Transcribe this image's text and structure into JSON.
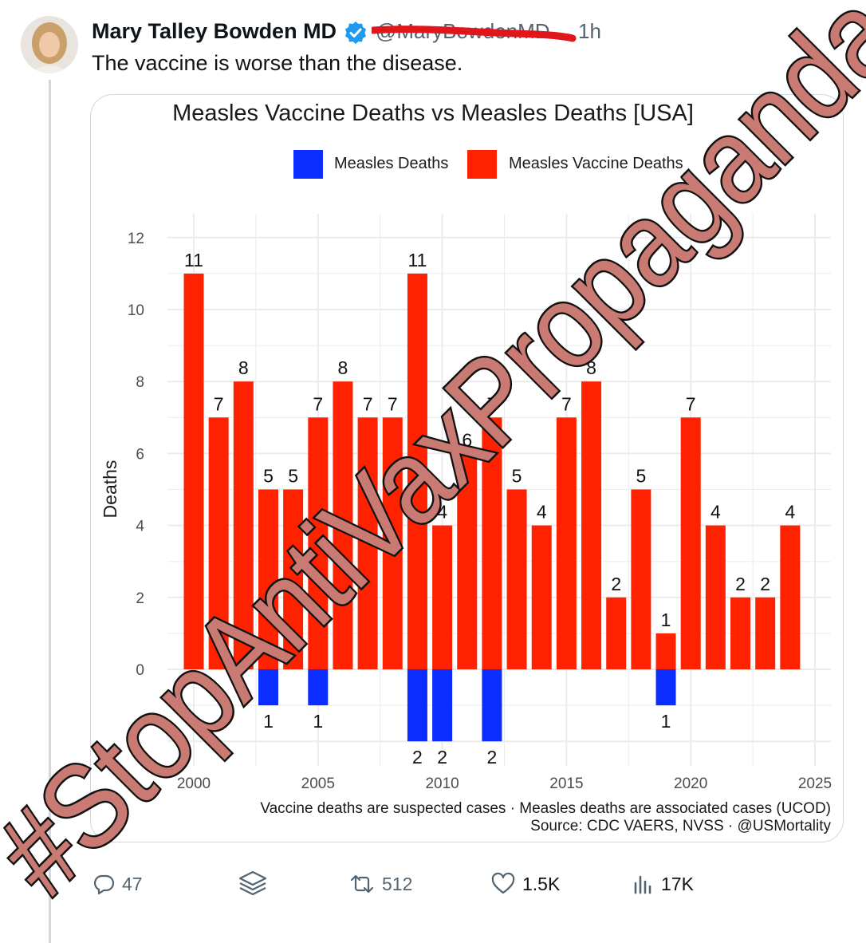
{
  "tweet": {
    "author_name": "Mary Talley Bowden MD",
    "handle": "@MaryBowdenMD",
    "time": "1h",
    "text": "The vaccine is worse than the disease."
  },
  "actions": {
    "replies": "47",
    "retweets": "512",
    "likes": "1.5K",
    "views": "17K"
  },
  "colors": {
    "vaccine": "#ff2200",
    "measles": "#0b2dff",
    "overlay_fill": "#c97a72",
    "scribble": "#e0161b"
  },
  "overlay": {
    "text": "#StopAntiVaxPropaganda"
  },
  "chart_data": {
    "type": "bar",
    "title": "Measles Vaccine Deaths vs Measles Deaths [USA]",
    "ylabel": "Deaths",
    "xlabel": "",
    "ylim": [
      -2,
      12
    ],
    "xlim": [
      2000,
      2025
    ],
    "x_ticks": [
      "2000",
      "2005",
      "2010",
      "2015",
      "2020",
      "2025"
    ],
    "y_ticks": [
      "0",
      "2",
      "4",
      "6",
      "8",
      "10",
      "12"
    ],
    "legend": [
      "Measles Deaths",
      "Measles Vaccine Deaths"
    ],
    "legend_position": "top",
    "grid": true,
    "series": [
      {
        "name": "Measles Vaccine Deaths",
        "years": [
          2000,
          2001,
          2002,
          2003,
          2004,
          2005,
          2006,
          2007,
          2008,
          2009,
          2010,
          2011,
          2012,
          2013,
          2014,
          2015,
          2016,
          2017,
          2018,
          2019,
          2020,
          2021,
          2022,
          2023,
          2024
        ],
        "values": [
          11,
          7,
          8,
          5,
          5,
          7,
          8,
          7,
          7,
          11,
          4,
          6,
          7,
          5,
          4,
          7,
          8,
          2,
          5,
          1,
          7,
          4,
          2,
          2,
          4
        ]
      },
      {
        "name": "Measles Deaths",
        "years": [
          2003,
          2005,
          2009,
          2010,
          2012,
          2019
        ],
        "values": [
          1,
          1,
          2,
          2,
          2,
          1
        ]
      }
    ],
    "caption": "Vaccine deaths are suspected cases · Measles deaths are associated cases (UCOD)",
    "source": "Source: CDC VAERS, NVSS · @USMortality"
  }
}
